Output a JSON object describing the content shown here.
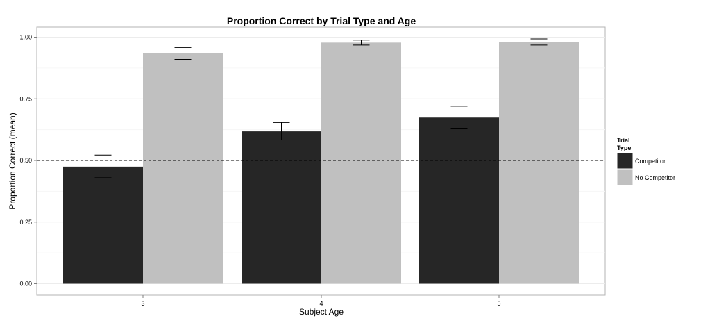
{
  "chart_data": {
    "type": "bar",
    "title": "Proportion Correct by Trial Type and Age",
    "xlabel": "Subject Age",
    "ylabel": "Proportion Correct (mean)",
    "categories": [
      "3",
      "4",
      "5"
    ],
    "ylim": [
      0,
      1.05
    ],
    "yticks": [
      0.0,
      0.25,
      0.5,
      0.75,
      1.0
    ],
    "ytick_labels": [
      "0.00",
      "0.25",
      "0.50",
      "0.75",
      "1.00"
    ],
    "reference_line": {
      "y": 0.5,
      "style": "dashed"
    },
    "grid": true,
    "legend": {
      "title_lines": [
        "Trial",
        "Type"
      ],
      "position": "right"
    },
    "series": [
      {
        "name": "Competitor",
        "color": "#262626",
        "values": [
          0.475,
          0.618,
          0.674
        ],
        "error_low": [
          0.43,
          0.583,
          0.628
        ],
        "error_high": [
          0.522,
          0.654,
          0.72
        ]
      },
      {
        "name": "No Competitor",
        "color": "#c0c0c0",
        "values": [
          0.934,
          0.978,
          0.98
        ],
        "error_low": [
          0.91,
          0.968,
          0.968
        ],
        "error_high": [
          0.958,
          0.988,
          0.993
        ]
      }
    ]
  }
}
